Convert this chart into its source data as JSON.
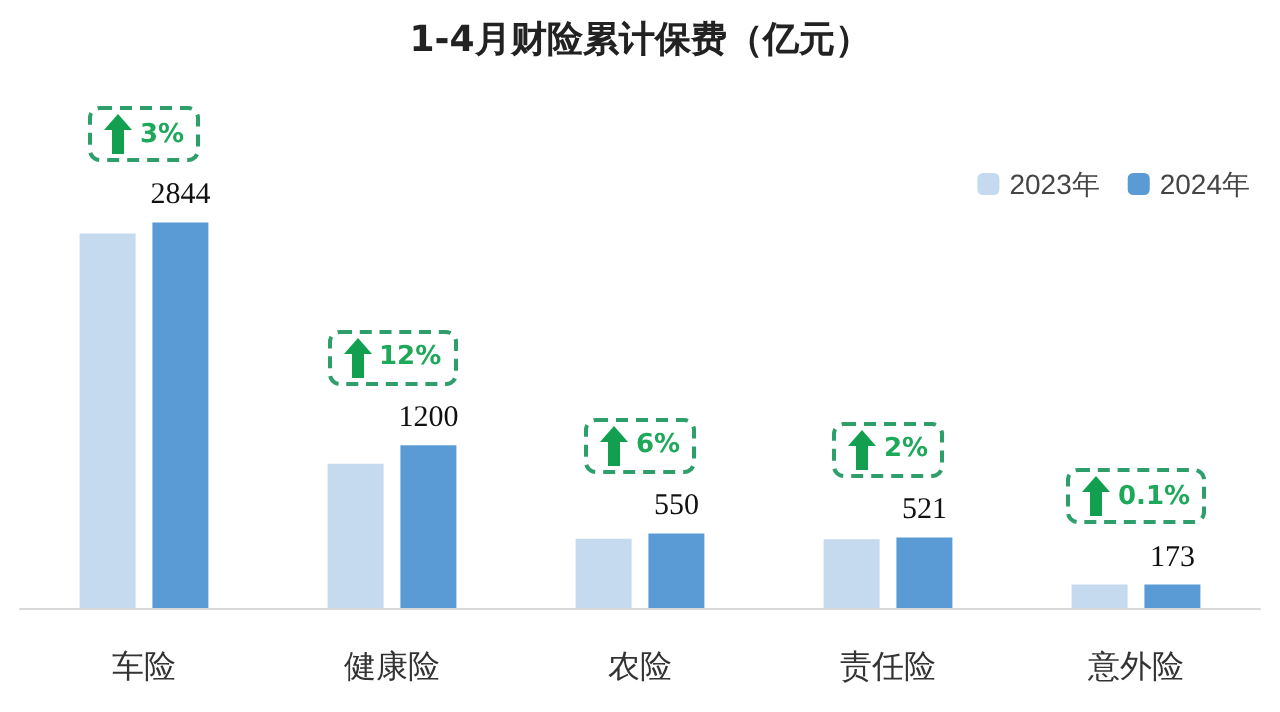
{
  "chart_data": {
    "type": "bar",
    "title": "1-4月财险累计保费（亿元）",
    "categories": [
      "车险",
      "健康险",
      "农险",
      "责任险",
      "意外险"
    ],
    "series": [
      {
        "name": "2023年",
        "color": "#c5d9ef",
        "values": [
          2763,
          1064,
          510,
          508,
          173
        ]
      },
      {
        "name": "2024年",
        "color": "#5b9bd5",
        "values": [
          2844,
          1200,
          550,
          521,
          173
        ],
        "value_labels": [
          "2844",
          "1200",
          "550",
          "521",
          "173"
        ]
      }
    ],
    "annotations": [
      {
        "text": "3%",
        "x": "车险",
        "y": 2844
      },
      {
        "text": "12%",
        "x": "健康险",
        "y": 1200
      },
      {
        "text": "6%",
        "x": "农险",
        "y": 550
      },
      {
        "text": "2%",
        "x": "责任险",
        "y": 521
      },
      {
        "text": "0.1%",
        "x": "意外险",
        "y": 173
      }
    ],
    "legend": "top right"
  }
}
